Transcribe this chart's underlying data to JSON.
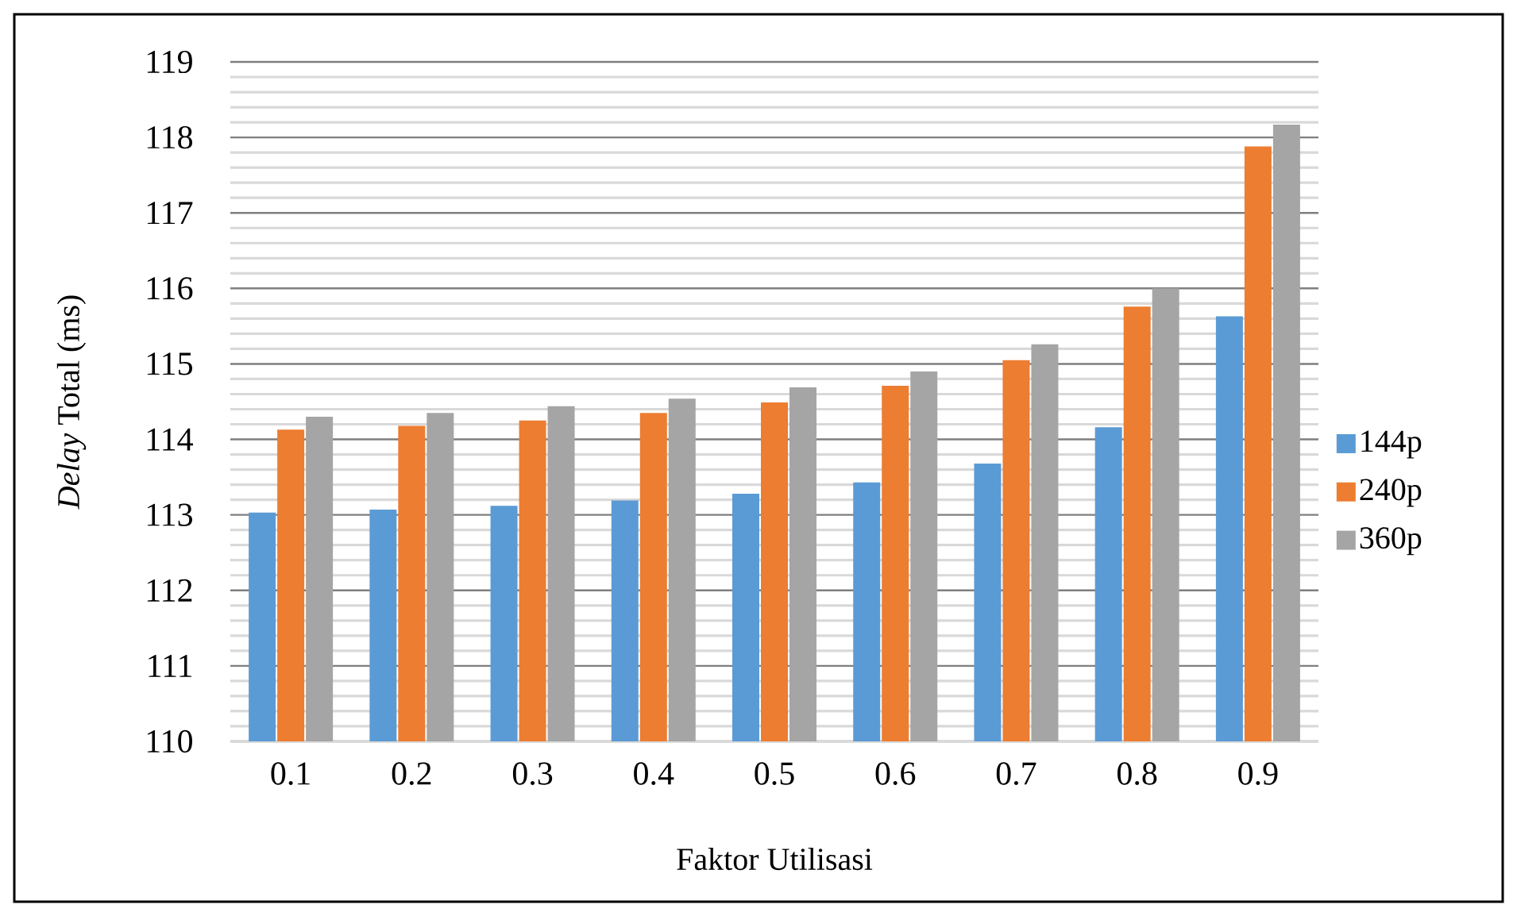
{
  "chart_data": {
    "type": "bar",
    "xlabel": "Faktor Utilisasi",
    "ylabel": "*Delay* Total (ms)",
    "categories": [
      "0.1",
      "0.2",
      "0.3",
      "0.4",
      "0.5",
      "0.6",
      "0.7",
      "0.8",
      "0.9"
    ],
    "series": [
      {
        "name": "144p",
        "color": "#5b9bd5",
        "values": [
          113.03,
          113.07,
          113.12,
          113.19,
          113.28,
          113.43,
          113.68,
          114.16,
          115.63
        ]
      },
      {
        "name": "240p",
        "color": "#ed7d31",
        "values": [
          114.13,
          114.18,
          114.25,
          114.35,
          114.49,
          114.71,
          115.05,
          115.76,
          117.88
        ]
      },
      {
        "name": "360p",
        "color": "#a5a5a5",
        "values": [
          114.3,
          114.35,
          114.44,
          114.54,
          114.69,
          114.9,
          115.26,
          116.0,
          118.17
        ]
      }
    ],
    "ylim": [
      110,
      119
    ],
    "yticks": [
      110,
      111,
      112,
      113,
      114,
      115,
      116,
      117,
      118,
      119
    ],
    "grid": "y",
    "legend": "right"
  }
}
